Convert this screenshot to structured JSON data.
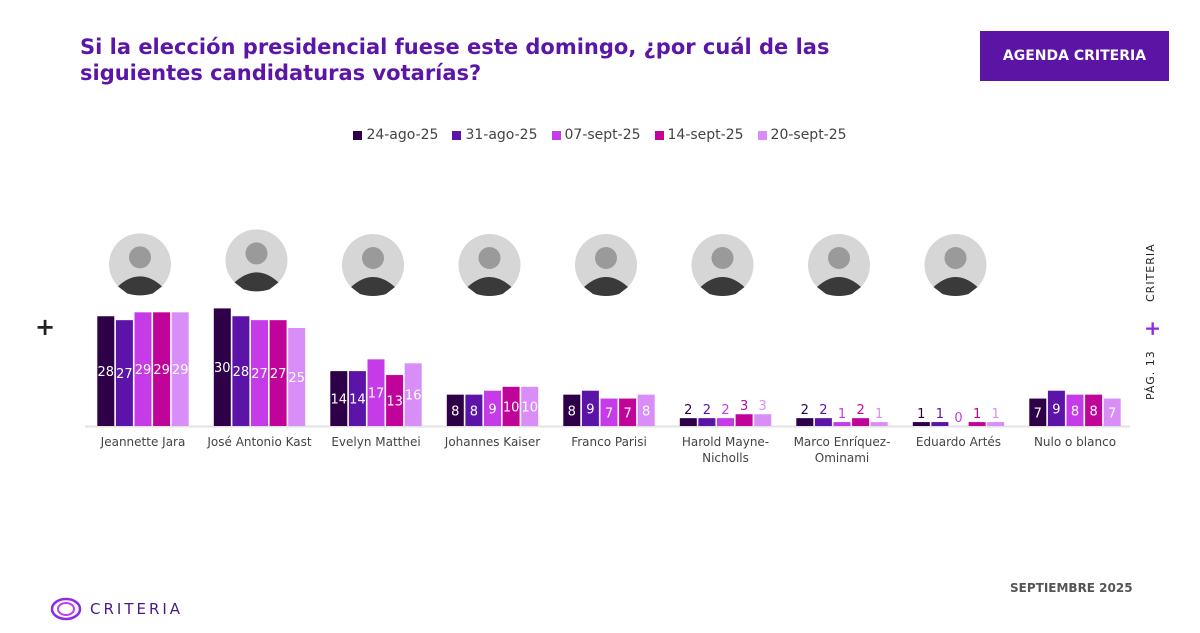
{
  "header": {
    "title": "Si la elección presidencial fuese este domingo, ¿por cuál de las siguientes candidaturas votarías?",
    "badge": "AGENDA CRITERIA"
  },
  "side": {
    "page": "PÁG. 13",
    "plus": "+",
    "brand": "CRITERIA"
  },
  "left_plus": "+",
  "footer": {
    "date": "SEPTIEMBRE 2025",
    "logo": "CRITERIA"
  },
  "chart_data": {
    "type": "bar",
    "title": "",
    "xlabel": "",
    "ylabel": "",
    "ylim": [
      0,
      32
    ],
    "grid": false,
    "legend_position": "top",
    "categories": [
      "Jeannette Jara",
      "José Antonio Kast",
      "Evelyn Matthei",
      "Johannes Kaiser",
      "Franco Parisi",
      "Harold Mayne-Nicholls",
      "Marco Enríquez-Ominami",
      "Eduardo Artés",
      "Nulo o blanco"
    ],
    "series": [
      {
        "name": "24-ago-25",
        "color": "#2d0047",
        "values": [
          28,
          30,
          14,
          8,
          8,
          2,
          2,
          1,
          7
        ]
      },
      {
        "name": "31-ago-25",
        "color": "#5b13a8",
        "values": [
          27,
          28,
          14,
          8,
          9,
          2,
          2,
          1,
          9
        ]
      },
      {
        "name": "07-sept-25",
        "color": "#c53be8",
        "values": [
          29,
          27,
          17,
          9,
          7,
          2,
          1,
          0,
          8
        ]
      },
      {
        "name": "14-sept-25",
        "color": "#c0049a",
        "values": [
          29,
          27,
          13,
          10,
          7,
          3,
          2,
          1,
          8
        ]
      },
      {
        "name": "20-sept-25",
        "color": "#d98ef7",
        "values": [
          29,
          25,
          16,
          10,
          8,
          3,
          1,
          1,
          7
        ]
      }
    ],
    "candidate_photos": [
      true,
      true,
      true,
      true,
      true,
      true,
      true,
      true,
      false
    ]
  }
}
